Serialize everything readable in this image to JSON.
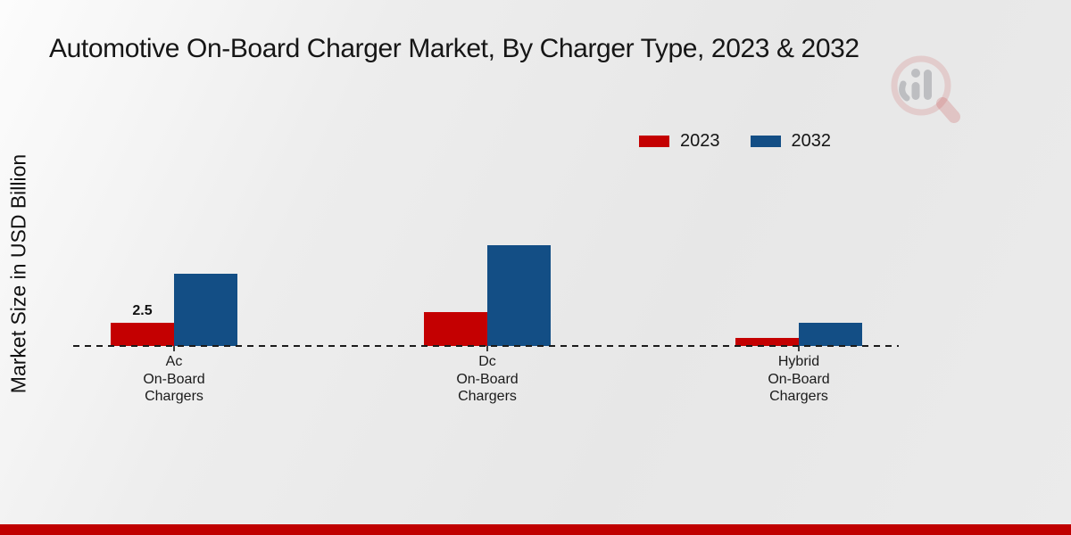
{
  "chart_data": {
    "type": "bar",
    "title": "Automotive On-Board Charger Market, By Charger Type, 2023 & 2032",
    "ylabel": "Market Size in USD Billion",
    "xlabel": "",
    "categories": [
      "Ac On-Board Chargers",
      "Dc On-Board Chargers",
      "Hybrid On-Board Chargers"
    ],
    "series": [
      {
        "name": "2023",
        "color": "#c40001",
        "values": [
          2.5,
          3.65,
          0.85
        ]
      },
      {
        "name": "2032",
        "color": "#134e85",
        "values": [
          7.8,
          10.9,
          2.5
        ]
      }
    ],
    "bar_labels": [
      {
        "category_index": 0,
        "series_index": 0,
        "text": "2.5"
      }
    ],
    "ylim": [
      0,
      12
    ],
    "grid": false,
    "axis_tick_labels_visible": false,
    "legend_position": "top-right",
    "baseline_style": "dashed"
  },
  "watermark": {
    "icon": "magnifier-bar-chart-logo",
    "circle_color": "rgba(197,62,62,0.16)",
    "bars_color": "rgba(128,130,138,0.42)"
  },
  "footer": {
    "accent_color": "#c00000"
  }
}
